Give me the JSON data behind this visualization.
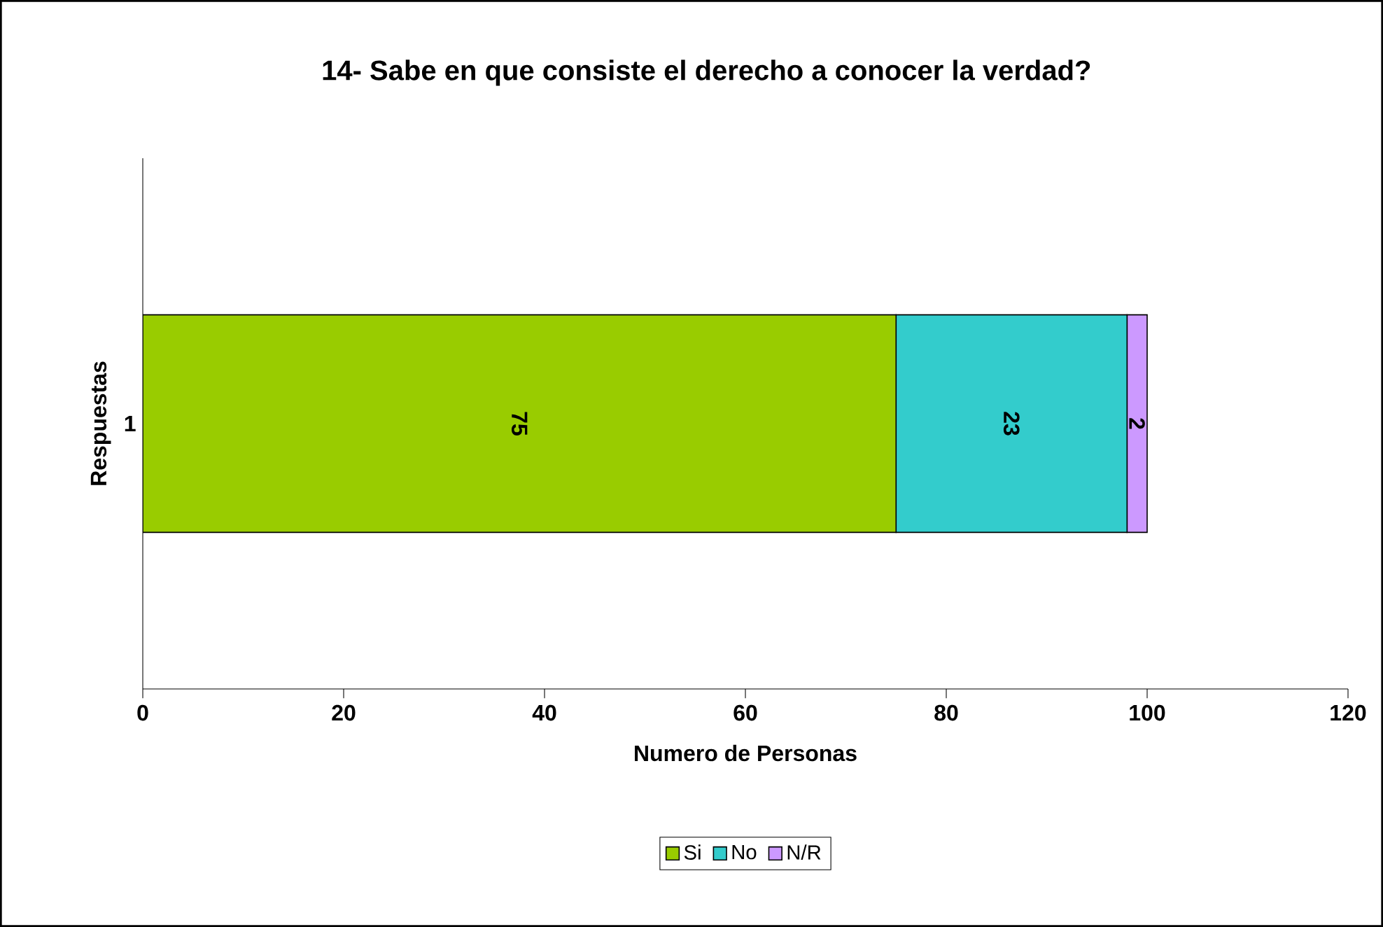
{
  "chart_data": {
    "type": "bar",
    "orientation": "horizontal",
    "stacked": true,
    "title": "14- Sabe en que consiste el derecho a conocer la verdad?",
    "xlabel": "Numero de Personas",
    "ylabel": "Respuestas",
    "categories": [
      "1"
    ],
    "series": [
      {
        "name": "Si",
        "color": "#99cc00",
        "values": [
          75
        ]
      },
      {
        "name": "No",
        "color": "#33cccc",
        "values": [
          23
        ]
      },
      {
        "name": "N/R",
        "color": "#cc99ff",
        "values": [
          2
        ]
      }
    ],
    "xlim": [
      0,
      120
    ],
    "xticks": [
      0,
      20,
      40,
      60,
      80,
      100,
      120
    ],
    "data_labels": true,
    "legend": "bottom",
    "grid": false
  }
}
